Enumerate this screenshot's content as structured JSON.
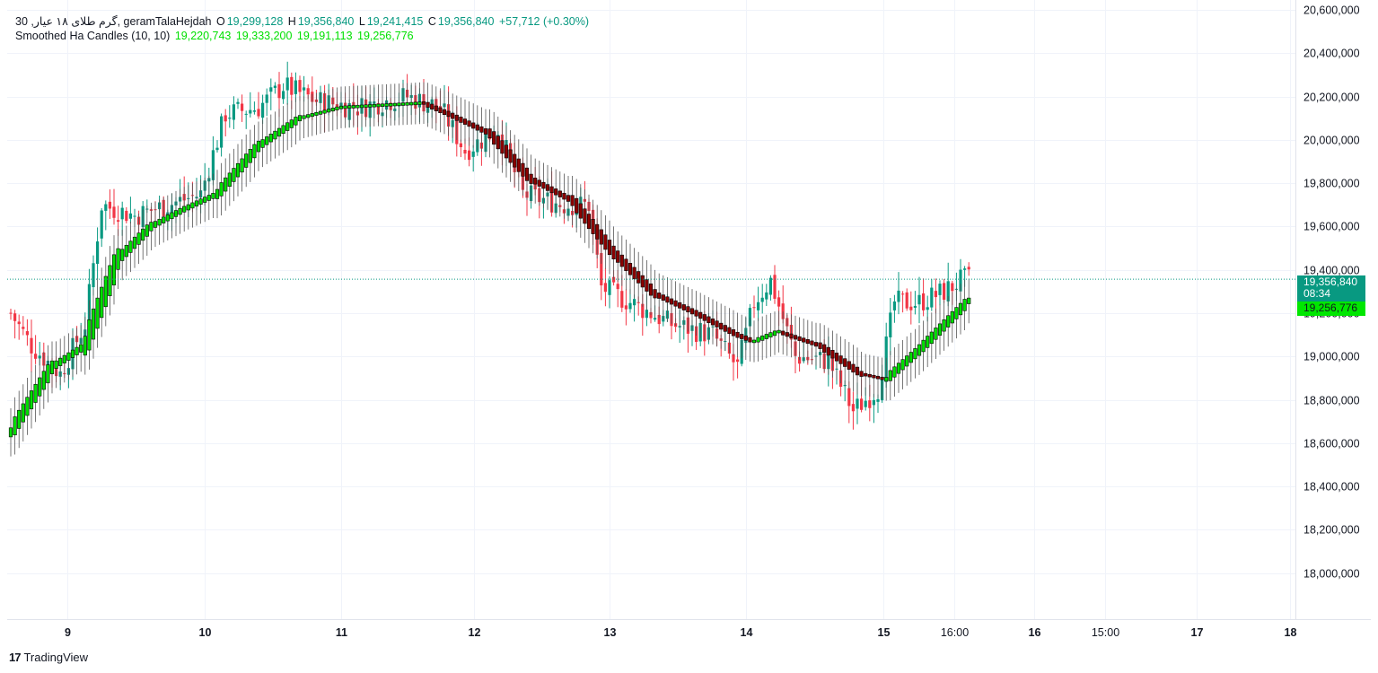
{
  "legend": {
    "title": "30 ,گرم طلای ۱۸ عیار, geramTalaHejdah",
    "o_label": "O",
    "o_value": "19,299,128",
    "h_label": "H",
    "h_value": "19,356,840",
    "l_label": "L",
    "l_value": "19,241,415",
    "c_label": "C",
    "c_value": "19,356,840",
    "change": "+57,712 (+0.30%)",
    "indicator_name": "Smoothed Ha Candles (10, 10)",
    "indicator_values": [
      "19,220,743",
      "19,333,200",
      "19,191,113",
      "19,256,776"
    ]
  },
  "price_tags": {
    "last_price": "19,356,840",
    "countdown": "08:34",
    "indicator_price": "19,256,776"
  },
  "branding": {
    "logo_text": "TradingView"
  },
  "colors": {
    "up": "#089981",
    "down": "#f23645",
    "ha_up": "#00e000",
    "ha_down": "#8b0000",
    "grid": "#f0f3fa",
    "text": "#131722"
  },
  "chart_data": {
    "type": "candlestick",
    "ylim": [
      17850000,
      20600000
    ],
    "y_ticks": [
      18000000,
      18200000,
      18400000,
      18600000,
      18800000,
      19000000,
      19200000,
      19400000,
      19600000,
      19800000,
      20000000,
      20200000,
      20400000,
      20600000
    ],
    "y_tick_labels": [
      "18,000,000",
      "18,200,000",
      "18,400,000",
      "18,600,000",
      "18,800,000",
      "19,000,000",
      "19,200,000",
      "19,400,000",
      "19,600,000",
      "19,800,000",
      "20,000,000",
      "20,200,000",
      "20,400,000",
      "20,600,000"
    ],
    "x_tick_labels": [
      "9",
      "10",
      "11",
      "12",
      "13",
      "14",
      "15",
      "16:00",
      "16",
      "15:00",
      "17",
      "18"
    ],
    "last_price_value": 19356840,
    "grid": true,
    "close_keypoints": [
      [
        0,
        19200000
      ],
      [
        5,
        19050000
      ],
      [
        12,
        18920000
      ],
      [
        18,
        19150000
      ],
      [
        22,
        19700000
      ],
      [
        30,
        19650000
      ],
      [
        38,
        19700000
      ],
      [
        46,
        19750000
      ],
      [
        52,
        20120000
      ],
      [
        60,
        20150000
      ],
      [
        66,
        20250000
      ],
      [
        74,
        20180000
      ],
      [
        84,
        20150000
      ],
      [
        96,
        20200000
      ],
      [
        104,
        20150000
      ],
      [
        110,
        19950000
      ],
      [
        118,
        20050000
      ],
      [
        124,
        19750000
      ],
      [
        134,
        19700000
      ],
      [
        140,
        19700000
      ],
      [
        143,
        19320000
      ],
      [
        150,
        19250000
      ],
      [
        160,
        19150000
      ],
      [
        170,
        19100000
      ],
      [
        176,
        18950000
      ],
      [
        180,
        19250000
      ],
      [
        184,
        19350000
      ],
      [
        190,
        19000000
      ],
      [
        198,
        18980000
      ],
      [
        204,
        18750000
      ],
      [
        210,
        18850000
      ],
      [
        214,
        19250000
      ],
      [
        220,
        19250000
      ],
      [
        226,
        19300000
      ],
      [
        230,
        19350000
      ],
      [
        232,
        19357000
      ]
    ],
    "ha_keypoints": [
      [
        0,
        18650000
      ],
      [
        10,
        18950000
      ],
      [
        18,
        19050000
      ],
      [
        26,
        19450000
      ],
      [
        34,
        19600000
      ],
      [
        42,
        19680000
      ],
      [
        50,
        19750000
      ],
      [
        60,
        19970000
      ],
      [
        70,
        20100000
      ],
      [
        80,
        20150000
      ],
      [
        90,
        20160000
      ],
      [
        100,
        20170000
      ],
      [
        106,
        20120000
      ],
      [
        116,
        20030000
      ],
      [
        126,
        19820000
      ],
      [
        136,
        19720000
      ],
      [
        146,
        19480000
      ],
      [
        156,
        19290000
      ],
      [
        166,
        19200000
      ],
      [
        176,
        19100000
      ],
      [
        180,
        19070000
      ],
      [
        186,
        19115000
      ],
      [
        196,
        19050000
      ],
      [
        206,
        18920000
      ],
      [
        212,
        18895000
      ],
      [
        220,
        19030000
      ],
      [
        232,
        19256776
      ]
    ],
    "series": [
      {
        "name": "geramTalaHejdah",
        "kind": "candles"
      },
      {
        "name": "Smoothed Ha Candles (10, 10)",
        "kind": "ha_candles"
      }
    ]
  }
}
